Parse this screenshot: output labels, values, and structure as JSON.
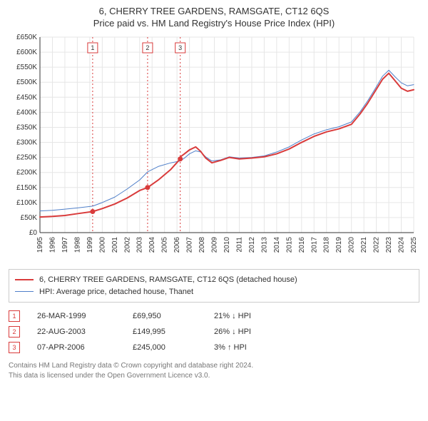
{
  "title_main": "6, CHERRY TREE GARDENS, RAMSGATE, CT12 6QS",
  "title_sub": "Price paid vs. HM Land Registry's House Price Index (HPI)",
  "chart": {
    "type": "line",
    "plot_background": "#ffffff",
    "grid_color": "#e6e6e6",
    "axis_color": "#333333",
    "axis_label_fontsize": 10,
    "x_axis": {
      "min_year": 1995,
      "max_year": 2025,
      "tick_step_years": 1,
      "label_rotation_deg": -90
    },
    "y_axis": {
      "min": 0,
      "max": 650000,
      "tick_step": 50000,
      "tick_prefix": "£",
      "tick_suffix_thousands": "K"
    },
    "sale_marker_lines": {
      "color": "#d93b3b",
      "dash": "2,3",
      "width": 1
    },
    "sale_marker_badges": {
      "border_color": "#d93b3b",
      "text_color": "#d93b3b",
      "fill": "#ffffff",
      "size": 14,
      "fontsize": 9
    },
    "series": [
      {
        "id": "property",
        "label": "6, CHERRY TREE GARDENS, RAMSGATE, CT12 6QS (detached house)",
        "color": "#d93b3b",
        "width": 2,
        "points": [
          {
            "year": 1995.0,
            "value": 52000
          },
          {
            "year": 1996.0,
            "value": 54000
          },
          {
            "year": 1997.0,
            "value": 57000
          },
          {
            "year": 1998.0,
            "value": 63000
          },
          {
            "year": 1999.23,
            "value": 69950
          },
          {
            "year": 2000.0,
            "value": 80000
          },
          {
            "year": 2001.0,
            "value": 95000
          },
          {
            "year": 2002.0,
            "value": 115000
          },
          {
            "year": 2003.0,
            "value": 140000
          },
          {
            "year": 2003.64,
            "value": 149995
          },
          {
            "year": 2004.5,
            "value": 175000
          },
          {
            "year": 2005.5,
            "value": 210000
          },
          {
            "year": 2006.26,
            "value": 245000
          },
          {
            "year": 2006.27,
            "value": 252000
          },
          {
            "year": 2006.6,
            "value": 262000
          },
          {
            "year": 2007.0,
            "value": 275000
          },
          {
            "year": 2007.5,
            "value": 285000
          },
          {
            "year": 2007.9,
            "value": 270000
          },
          {
            "year": 2008.3,
            "value": 248000
          },
          {
            "year": 2008.8,
            "value": 232000
          },
          {
            "year": 2009.5,
            "value": 240000
          },
          {
            "year": 2010.2,
            "value": 250000
          },
          {
            "year": 2011.0,
            "value": 245000
          },
          {
            "year": 2012.0,
            "value": 248000
          },
          {
            "year": 2013.0,
            "value": 252000
          },
          {
            "year": 2014.0,
            "value": 262000
          },
          {
            "year": 2015.0,
            "value": 278000
          },
          {
            "year": 2016.0,
            "value": 300000
          },
          {
            "year": 2017.0,
            "value": 320000
          },
          {
            "year": 2018.0,
            "value": 335000
          },
          {
            "year": 2019.0,
            "value": 345000
          },
          {
            "year": 2020.0,
            "value": 360000
          },
          {
            "year": 2020.7,
            "value": 395000
          },
          {
            "year": 2021.3,
            "value": 430000
          },
          {
            "year": 2021.9,
            "value": 470000
          },
          {
            "year": 2022.5,
            "value": 510000
          },
          {
            "year": 2023.0,
            "value": 530000
          },
          {
            "year": 2023.5,
            "value": 505000
          },
          {
            "year": 2024.0,
            "value": 480000
          },
          {
            "year": 2024.5,
            "value": 470000
          },
          {
            "year": 2025.0,
            "value": 475000
          }
        ]
      },
      {
        "id": "hpi",
        "label": "HPI: Average price, detached house, Thanet",
        "color": "#4f7fc9",
        "width": 1,
        "points": [
          {
            "year": 1995.0,
            "value": 72000
          },
          {
            "year": 1996.0,
            "value": 74000
          },
          {
            "year": 1997.0,
            "value": 78000
          },
          {
            "year": 1998.0,
            "value": 82000
          },
          {
            "year": 1999.23,
            "value": 88000
          },
          {
            "year": 2000.0,
            "value": 100000
          },
          {
            "year": 2001.0,
            "value": 118000
          },
          {
            "year": 2002.0,
            "value": 145000
          },
          {
            "year": 2003.0,
            "value": 175000
          },
          {
            "year": 2003.64,
            "value": 202000
          },
          {
            "year": 2004.5,
            "value": 220000
          },
          {
            "year": 2005.5,
            "value": 232000
          },
          {
            "year": 2006.26,
            "value": 238000
          },
          {
            "year": 2006.6,
            "value": 248000
          },
          {
            "year": 2007.0,
            "value": 262000
          },
          {
            "year": 2007.5,
            "value": 272000
          },
          {
            "year": 2007.9,
            "value": 268000
          },
          {
            "year": 2008.3,
            "value": 252000
          },
          {
            "year": 2008.8,
            "value": 238000
          },
          {
            "year": 2009.5,
            "value": 242000
          },
          {
            "year": 2010.2,
            "value": 252000
          },
          {
            "year": 2011.0,
            "value": 248000
          },
          {
            "year": 2012.0,
            "value": 250000
          },
          {
            "year": 2013.0,
            "value": 255000
          },
          {
            "year": 2014.0,
            "value": 268000
          },
          {
            "year": 2015.0,
            "value": 285000
          },
          {
            "year": 2016.0,
            "value": 308000
          },
          {
            "year": 2017.0,
            "value": 328000
          },
          {
            "year": 2018.0,
            "value": 342000
          },
          {
            "year": 2019.0,
            "value": 352000
          },
          {
            "year": 2020.0,
            "value": 368000
          },
          {
            "year": 2020.7,
            "value": 402000
          },
          {
            "year": 2021.3,
            "value": 438000
          },
          {
            "year": 2021.9,
            "value": 478000
          },
          {
            "year": 2022.5,
            "value": 520000
          },
          {
            "year": 2023.0,
            "value": 540000
          },
          {
            "year": 2023.5,
            "value": 518000
          },
          {
            "year": 2024.0,
            "value": 498000
          },
          {
            "year": 2024.5,
            "value": 488000
          },
          {
            "year": 2025.0,
            "value": 492000
          }
        ]
      }
    ],
    "sale_markers": [
      {
        "n": 1,
        "year": 1999.23,
        "value": 69950
      },
      {
        "n": 2,
        "year": 2003.64,
        "value": 149995
      },
      {
        "n": 3,
        "year": 2006.26,
        "value": 245000
      }
    ]
  },
  "legend": {
    "border_color": "#cccccc",
    "items": [
      {
        "color": "#d93b3b",
        "width": 2,
        "label_path": "chart.series.0.label"
      },
      {
        "color": "#4f7fc9",
        "width": 1,
        "label_path": "chart.series.1.label"
      }
    ]
  },
  "sales": {
    "badge_border": "#d93b3b",
    "badge_text": "#d93b3b",
    "rows": [
      {
        "n": "1",
        "date": "26-MAR-1999",
        "price": "£69,950",
        "diff": "21% ↓ HPI"
      },
      {
        "n": "2",
        "date": "22-AUG-2003",
        "price": "£149,995",
        "diff": "26% ↓ HPI"
      },
      {
        "n": "3",
        "date": "07-APR-2006",
        "price": "£245,000",
        "diff": "3% ↑ HPI"
      }
    ]
  },
  "footer": {
    "color": "#777777",
    "line1": "Contains HM Land Registry data © Crown copyright and database right 2024.",
    "line2": "This data is licensed under the Open Government Licence v3.0."
  }
}
